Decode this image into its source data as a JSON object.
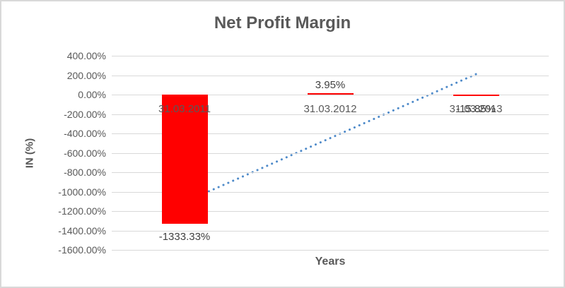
{
  "chart_data": {
    "type": "bar",
    "title": "Net Profit Margin",
    "xlabel": "Years",
    "ylabel": "IN (%)",
    "categories": [
      "31.03.2011",
      "31.03.2012",
      "31.03.2013"
    ],
    "values": [
      -1333.33,
      3.95,
      -15.85
    ],
    "data_labels": [
      "-1333.33%",
      "3.95%",
      "-15.85%"
    ],
    "ylim": [
      -1600,
      400
    ],
    "y_tick_step": 200,
    "y_tick_labels": [
      "400.00%",
      "200.00%",
      "0.00%",
      "-200.00%",
      "-400.00%",
      "-600.00%",
      "-800.00%",
      "-1000.00%",
      "-1200.00%",
      "-1400.00%",
      "-1600.00%"
    ],
    "grid": true,
    "legend": false,
    "trendline": {
      "style": "dotted",
      "start_category_index": 0,
      "start_value": -1107,
      "end_category_index": 2,
      "end_value": 210
    },
    "colors": {
      "bar": "#FF0000",
      "trendline": "#4E8AC9",
      "gridline": "#D9D9D9",
      "title_text": "#595959",
      "axis_text": "#595959",
      "data_label_text": "#404040",
      "frame_border": "#D9D9D9"
    }
  }
}
